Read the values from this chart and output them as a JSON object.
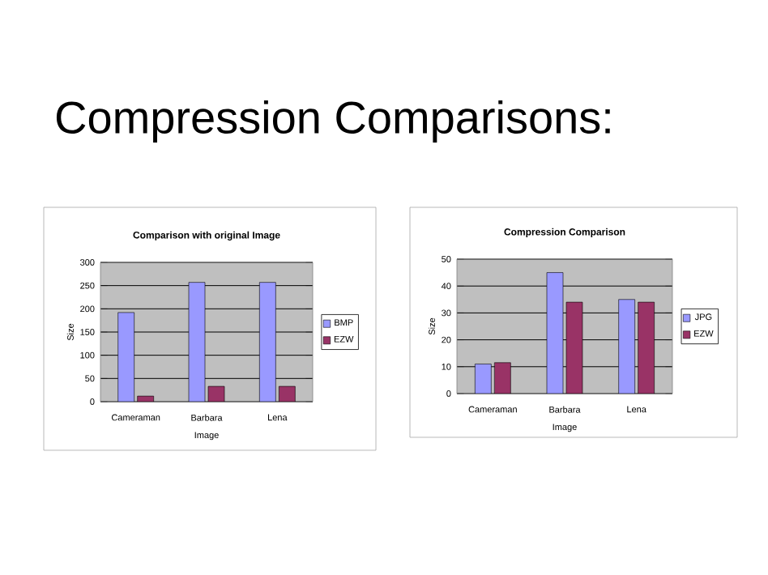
{
  "chart_data": [
    {
      "type": "bar",
      "title": "Comparison with original Image",
      "xlabel": "Image",
      "ylabel": "Size",
      "annotations": [
        "Compression Comparisons:"
      ],
      "categories": [
        "Cameraman",
        "Barbara",
        "Lena"
      ],
      "series": [
        {
          "name": "BMP",
          "color": "#9999ff",
          "values": [
            192,
            257,
            257
          ]
        },
        {
          "name": "EZW",
          "color": "#993366",
          "values": [
            12,
            33,
            33
          ]
        }
      ],
      "ylim": [
        0,
        300
      ],
      "yticks": [
        0,
        50,
        100,
        150,
        200,
        250,
        300
      ],
      "grid": "y",
      "legend": "right"
    },
    {
      "type": "bar",
      "title": "Compression Comparison",
      "xlabel": "Image",
      "ylabel": "Size",
      "categories": [
        "Cameraman",
        "Barbara",
        "Lena"
      ],
      "series": [
        {
          "name": "JPG",
          "color": "#9999ff",
          "values": [
            11,
            45,
            35
          ]
        },
        {
          "name": "EZW",
          "color": "#993366",
          "values": [
            11.5,
            34,
            34
          ]
        }
      ],
      "ylim": [
        0,
        50
      ],
      "yticks": [
        0,
        10,
        20,
        30,
        40,
        50
      ],
      "grid": "y",
      "legend": "right"
    }
  ]
}
